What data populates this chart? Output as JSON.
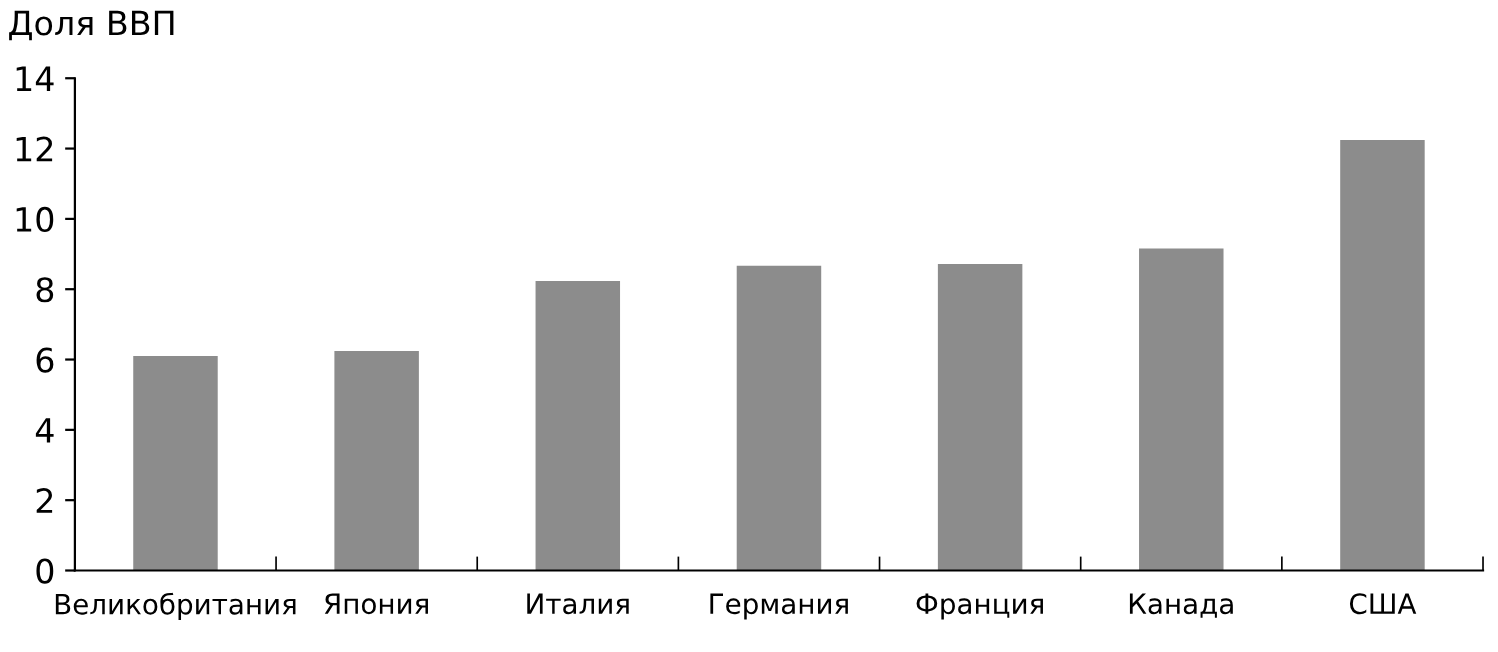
{
  "chart_data": {
    "type": "bar",
    "ylabel": "Доля ВВП",
    "categories": [
      "Великобритания",
      "Япония",
      "Италия",
      "Германия",
      "Франция",
      "Канада",
      "США"
    ],
    "values": [
      6.1,
      6.24,
      8.23,
      8.67,
      8.72,
      9.16,
      12.24
    ],
    "color": "#8c8c8c",
    "ylim": [
      0,
      14
    ],
    "yticks": [
      0,
      2,
      4,
      6,
      8,
      10,
      12,
      14
    ],
    "grid": false
  }
}
